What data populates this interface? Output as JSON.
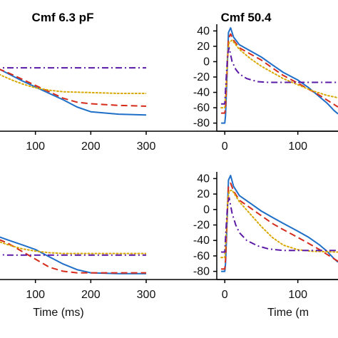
{
  "colors": {
    "blue": "#1f6fc8",
    "red": "#d62a1a",
    "yellow": "#d9a800",
    "purple": "#5a19a6",
    "axis": "#000000"
  },
  "chart_data": [
    {
      "id": "top-left",
      "type": "line",
      "title": "Cmf 6.3 pF",
      "xlabel": "",
      "xlim": [
        0,
        300
      ],
      "ylim": [
        -80,
        45
      ],
      "xticks": [
        100,
        200,
        300
      ],
      "yticks": [],
      "series": [
        {
          "style": "solid",
          "color": "blue",
          "x": [
            0,
            25,
            50,
            75,
            100,
            125,
            150,
            175,
            200,
            250,
            300
          ],
          "y": [
            5,
            -4,
            -13,
            -22,
            -30,
            -38,
            -46,
            -55,
            -61,
            -64,
            -65
          ]
        },
        {
          "style": "dashed",
          "color": "red",
          "x": [
            0,
            25,
            50,
            75,
            100,
            125,
            150,
            175,
            200,
            250,
            300
          ],
          "y": [
            3,
            -5,
            -12,
            -20,
            -28,
            -36,
            -44,
            -49,
            -51,
            -53,
            -54
          ]
        },
        {
          "style": "dotted",
          "color": "yellow",
          "x": [
            0,
            20,
            40,
            60,
            80,
            100,
            125,
            150,
            200,
            250,
            300
          ],
          "y": [
            -2,
            -9,
            -16,
            -22,
            -27,
            -31,
            -34,
            -36,
            -37,
            -38,
            -38
          ]
        },
        {
          "style": "dashdot",
          "color": "purple",
          "x": [
            0,
            300
          ],
          "y": [
            -6,
            -6
          ]
        }
      ]
    },
    {
      "id": "top-right",
      "type": "line",
      "title": "Cmf 50.4",
      "xlabel": "",
      "xlim": [
        -10,
        155
      ],
      "ylim": [
        -85,
        45
      ],
      "xticks": [
        0,
        100
      ],
      "yticks": [
        40,
        20,
        0,
        -20,
        -40,
        -60,
        -80
      ],
      "series": [
        {
          "style": "solid",
          "color": "blue",
          "x": [
            -5,
            0,
            1,
            3,
            5,
            8,
            12,
            20,
            35,
            50,
            65,
            80,
            100,
            115,
            130,
            140,
            150,
            155
          ],
          "y": [
            -80,
            -80,
            -70,
            -20,
            38,
            44,
            32,
            22,
            14,
            6,
            -4,
            -14,
            -24,
            -34,
            -46,
            -54,
            -64,
            -68
          ]
        },
        {
          "style": "dashed",
          "color": "red",
          "x": [
            -5,
            0,
            1,
            3,
            5,
            8,
            12,
            20,
            35,
            50,
            65,
            80,
            100,
            115,
            130,
            140,
            150,
            155
          ],
          "y": [
            -67,
            -67,
            -60,
            -15,
            30,
            36,
            28,
            18,
            10,
            2,
            -8,
            -18,
            -28,
            -36,
            -44,
            -50,
            -56,
            -59
          ]
        },
        {
          "style": "dotted",
          "color": "yellow",
          "x": [
            -5,
            0,
            2,
            4,
            6,
            10,
            20,
            35,
            50,
            65,
            80,
            100,
            120,
            140,
            155
          ],
          "y": [
            -60,
            -60,
            -30,
            10,
            25,
            28,
            16,
            4,
            -6,
            -14,
            -22,
            -30,
            -38,
            -44,
            -47
          ]
        },
        {
          "style": "dashdot",
          "color": "purple",
          "x": [
            -5,
            0,
            2,
            4,
            6,
            10,
            15,
            20,
            30,
            45,
            60,
            155
          ],
          "y": [
            -55,
            -55,
            -20,
            10,
            18,
            0,
            -10,
            -16,
            -22,
            -26,
            -27,
            -27
          ]
        }
      ]
    },
    {
      "id": "bottom-left",
      "type": "line",
      "title": "",
      "xlabel": "Time (ms)",
      "xlim": [
        0,
        300
      ],
      "ylim": [
        -80,
        45
      ],
      "xticks": [
        100,
        200,
        300
      ],
      "yticks": [],
      "series": [
        {
          "style": "solid",
          "color": "blue",
          "x": [
            0,
            25,
            50,
            75,
            100,
            125,
            150,
            175,
            200,
            250,
            300
          ],
          "y": [
            -25,
            -30,
            -36,
            -42,
            -48,
            -57,
            -66,
            -73,
            -77,
            -78,
            -78
          ]
        },
        {
          "style": "dashed",
          "color": "red",
          "x": [
            0,
            25,
            50,
            75,
            100,
            125,
            150,
            175,
            200,
            250,
            300
          ],
          "y": [
            -28,
            -33,
            -40,
            -50,
            -60,
            -70,
            -75,
            -77,
            -77,
            -77,
            -77
          ]
        },
        {
          "style": "dotted",
          "color": "yellow",
          "x": [
            0,
            25,
            50,
            75,
            100,
            125,
            150,
            200,
            250,
            300
          ],
          "y": [
            -30,
            -36,
            -42,
            -47,
            -50,
            -52,
            -53,
            -53,
            -53,
            -53
          ]
        },
        {
          "style": "dashdot",
          "color": "purple",
          "x": [
            0,
            25,
            50,
            100,
            300
          ],
          "y": [
            -52,
            -54,
            -55,
            -55,
            -55
          ]
        }
      ]
    },
    {
      "id": "bottom-right",
      "type": "line",
      "title": "",
      "xlabel": "Time (m",
      "xlim": [
        -10,
        155
      ],
      "ylim": [
        -85,
        45
      ],
      "xticks": [
        0,
        100
      ],
      "yticks": [
        40,
        20,
        0,
        -20,
        -40,
        -60,
        -80
      ],
      "series": [
        {
          "style": "solid",
          "color": "blue",
          "x": [
            -5,
            0,
            1,
            3,
            5,
            8,
            12,
            20,
            35,
            50,
            65,
            80,
            100,
            115,
            130,
            140,
            150,
            155
          ],
          "y": [
            -80,
            -80,
            -70,
            -20,
            38,
            44,
            30,
            18,
            8,
            -2,
            -10,
            -18,
            -28,
            -36,
            -46,
            -54,
            -64,
            -68
          ]
        },
        {
          "style": "dashed",
          "color": "red",
          "x": [
            -5,
            0,
            1,
            3,
            5,
            8,
            12,
            20,
            35,
            50,
            65,
            80,
            100,
            115,
            130,
            140,
            150,
            155
          ],
          "y": [
            -77,
            -77,
            -65,
            -15,
            30,
            34,
            24,
            12,
            2,
            -8,
            -18,
            -26,
            -36,
            -44,
            -52,
            -58,
            -64,
            -67
          ]
        },
        {
          "style": "dotted",
          "color": "yellow",
          "x": [
            -5,
            0,
            2,
            4,
            6,
            10,
            20,
            35,
            50,
            65,
            80,
            100,
            120,
            155
          ],
          "y": [
            -62,
            -62,
            -30,
            10,
            24,
            25,
            10,
            -6,
            -22,
            -36,
            -46,
            -52,
            -54,
            -55
          ]
        },
        {
          "style": "dashdot",
          "color": "purple",
          "x": [
            -5,
            0,
            2,
            4,
            6,
            10,
            15,
            20,
            30,
            45,
            60,
            80,
            155
          ],
          "y": [
            -55,
            -55,
            -20,
            8,
            15,
            -5,
            -20,
            -30,
            -40,
            -47,
            -51,
            -53,
            -53
          ]
        }
      ]
    }
  ]
}
